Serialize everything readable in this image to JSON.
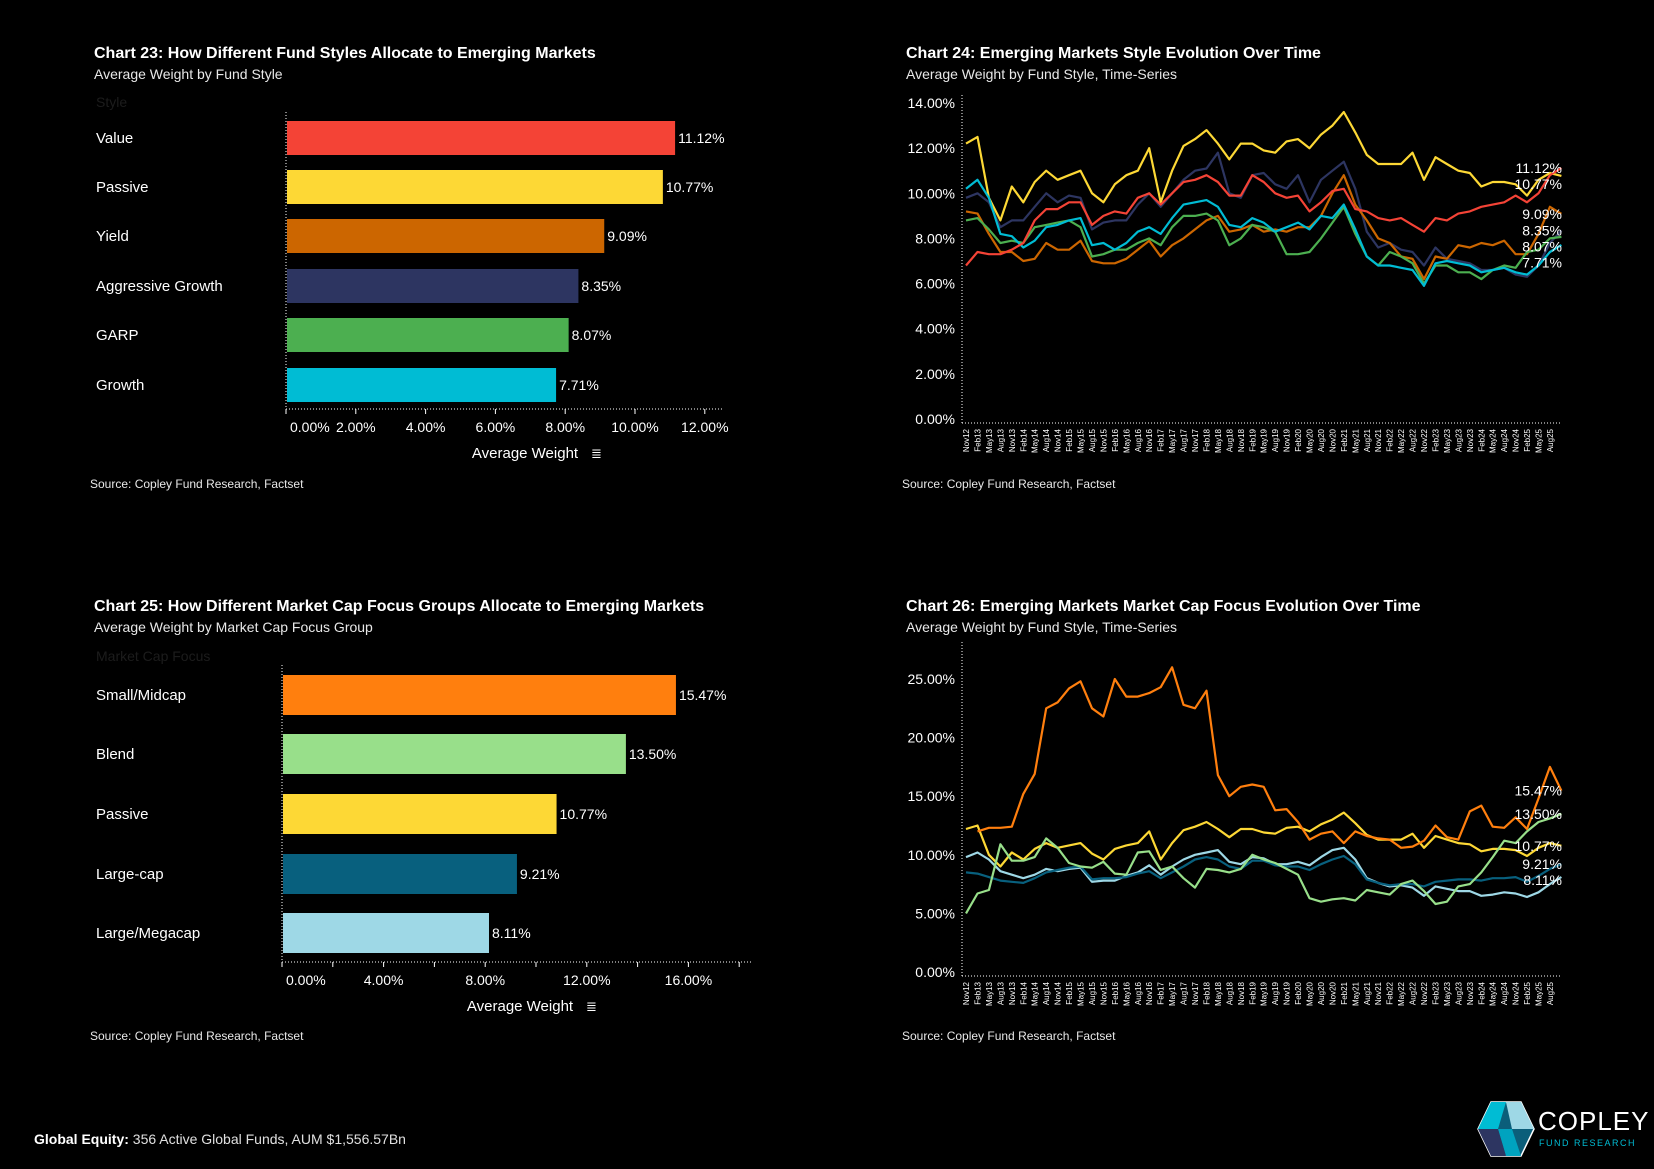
{
  "chart_data": [
    {
      "id": "chart23",
      "type": "bar",
      "orientation": "horizontal",
      "title": "Chart 23:  How Different Fund Styles Allocate to Emerging Markets",
      "subtitle": "Average Weight by Fund Style",
      "category_header": "Style",
      "categories": [
        "Value",
        "Passive",
        "Yield",
        "Aggressive Growth",
        "GARP",
        "Growth"
      ],
      "values": [
        11.12,
        10.77,
        9.09,
        8.35,
        8.07,
        7.71
      ],
      "value_labels": [
        "11.12%",
        "10.77%",
        "9.09%",
        "8.35%",
        "8.07%",
        "7.71%"
      ],
      "colors": [
        "#f44336",
        "#fdd835",
        "#cc6600",
        "#2d3561",
        "#4caf50",
        "#00bcd4"
      ],
      "xlabel": "Average Weight",
      "x_ticks": [
        "0.00%",
        "2.00%",
        "4.00%",
        "6.00%",
        "8.00%",
        "10.00%",
        "12.00%"
      ],
      "xlim": [
        0,
        12.5
      ],
      "source": "Source:  Copley Fund Research, Factset"
    },
    {
      "id": "chart24",
      "type": "line",
      "title": "Chart 24:  Emerging Markets Style Evolution Over Time",
      "subtitle": "Average Weight by Fund Style, Time-Series",
      "ylim": [
        0,
        14
      ],
      "y_ticks": [
        "0.00%",
        "2.00%",
        "4.00%",
        "6.00%",
        "8.00%",
        "10.00%",
        "12.00%",
        "14.00%"
      ],
      "x_labels": [
        "Nov12",
        "Feb13",
        "May13",
        "Aug13",
        "Nov13",
        "Feb14",
        "May14",
        "Aug14",
        "Nov14",
        "Feb15",
        "May15",
        "Aug15",
        "Nov15",
        "Feb16",
        "May16",
        "Aug16",
        "Nov16",
        "Feb17",
        "May17",
        "Aug17",
        "Nov17",
        "Feb18",
        "May18",
        "Aug18",
        "Nov18",
        "Feb19",
        "May19",
        "Aug19",
        "Nov19",
        "Feb20",
        "May20",
        "Aug20",
        "Nov20",
        "Feb21",
        "May21",
        "Aug21",
        "Nov21",
        "Feb22",
        "May22",
        "Aug22",
        "Nov22",
        "Feb23",
        "May23",
        "Aug23",
        "Nov23",
        "Feb24",
        "May24",
        "Aug24",
        "Nov24",
        "Feb25",
        "May25",
        "Aug25"
      ],
      "series": [
        {
          "color": "#fdd835",
          "end_label": "10.77%",
          "values": [
            12.2,
            12.5,
            9.8,
            8.8,
            10.3,
            9.6,
            10.5,
            11.0,
            10.6,
            10.8,
            11.0,
            10.0,
            9.6,
            10.4,
            10.8,
            11.0,
            12.0,
            9.6,
            11.0,
            12.1,
            12.4,
            12.8,
            12.2,
            11.5,
            12.2,
            12.2,
            11.9,
            11.8,
            12.3,
            12.4,
            12.0,
            12.6,
            13.0,
            13.6,
            12.7,
            11.7,
            11.3,
            11.3,
            11.3,
            11.8,
            10.6,
            11.6,
            11.3,
            11.0,
            10.9,
            10.3,
            10.5,
            10.5,
            10.4,
            9.9,
            10.6,
            10.9,
            10.77
          ]
        },
        {
          "color": "#2d3561",
          "end_label": "8.35%",
          "values": [
            9.8,
            10.0,
            9.6,
            8.5,
            8.8,
            8.8,
            9.4,
            10.0,
            9.6,
            9.9,
            9.8,
            8.4,
            8.7,
            8.8,
            8.8,
            9.5,
            10.0,
            9.4,
            10.0,
            10.6,
            11.0,
            11.1,
            11.8,
            10.0,
            9.8,
            10.8,
            10.9,
            10.4,
            10.2,
            10.8,
            9.6,
            10.6,
            11.0,
            11.4,
            10.2,
            8.3,
            7.6,
            7.8,
            7.5,
            7.4,
            6.8,
            7.6,
            7.1,
            7.0,
            6.9,
            6.6,
            6.6,
            6.7,
            6.4,
            6.3,
            6.8,
            7.8,
            8.35
          ]
        },
        {
          "color": "#cc6600",
          "end_label": "9.09%",
          "values": [
            9.2,
            9.1,
            8.2,
            7.4,
            7.4,
            7.0,
            7.1,
            7.8,
            7.5,
            7.5,
            7.9,
            7.0,
            6.9,
            6.9,
            7.1,
            7.5,
            7.9,
            7.2,
            7.7,
            8.0,
            8.4,
            8.8,
            9.0,
            8.3,
            8.4,
            8.6,
            8.3,
            8.4,
            8.3,
            8.5,
            8.5,
            9.0,
            10.0,
            10.8,
            9.5,
            8.8,
            8.0,
            7.8,
            7.2,
            7.1,
            6.2,
            7.2,
            7.1,
            7.7,
            7.6,
            7.8,
            7.7,
            7.9,
            7.3,
            7.3,
            8.2,
            9.4,
            9.09
          ]
        },
        {
          "color": "#4caf50",
          "end_label": "8.07%",
          "values": [
            8.8,
            8.9,
            8.4,
            7.8,
            7.9,
            7.8,
            8.5,
            8.6,
            8.7,
            8.8,
            8.5,
            7.2,
            7.3,
            7.5,
            7.5,
            7.8,
            8.0,
            7.7,
            8.5,
            9.0,
            9.0,
            9.1,
            8.8,
            7.7,
            8.0,
            8.6,
            8.5,
            8.3,
            7.3,
            7.3,
            7.4,
            8.0,
            8.7,
            9.4,
            8.2,
            7.2,
            6.8,
            7.4,
            7.2,
            6.9,
            6.0,
            6.8,
            6.8,
            6.5,
            6.5,
            6.2,
            6.6,
            6.8,
            6.7,
            7.4,
            7.5,
            8.0,
            8.07
          ]
        },
        {
          "color": "#00bcd4",
          "end_label": "7.71%",
          "values": [
            10.2,
            10.6,
            9.8,
            8.2,
            8.1,
            7.6,
            7.9,
            8.5,
            8.6,
            8.8,
            8.9,
            7.7,
            7.8,
            7.5,
            7.8,
            8.3,
            8.5,
            8.2,
            8.9,
            9.5,
            9.6,
            9.7,
            9.4,
            8.6,
            8.5,
            8.9,
            8.7,
            8.3,
            8.5,
            8.7,
            8.4,
            9.0,
            8.9,
            9.5,
            8.4,
            7.2,
            6.8,
            6.8,
            6.7,
            6.6,
            5.9,
            6.9,
            7.0,
            6.9,
            6.8,
            6.5,
            6.6,
            6.7,
            6.5,
            6.4,
            6.8,
            7.4,
            7.71
          ]
        },
        {
          "color": "#f44336",
          "end_label": "11.12%",
          "values": [
            6.8,
            7.4,
            7.3,
            7.3,
            7.5,
            7.8,
            8.8,
            9.3,
            9.3,
            9.6,
            9.6,
            8.6,
            9.0,
            9.2,
            9.1,
            9.8,
            10.0,
            9.5,
            10.0,
            10.5,
            10.6,
            10.8,
            10.5,
            9.9,
            9.9,
            10.8,
            10.5,
            10.0,
            9.8,
            9.9,
            9.2,
            9.6,
            10.1,
            10.2,
            9.3,
            9.2,
            8.9,
            8.8,
            8.9,
            8.6,
            8.3,
            8.9,
            8.8,
            9.1,
            9.2,
            9.4,
            9.5,
            9.6,
            9.9,
            9.6,
            10.0,
            10.8,
            11.12
          ]
        }
      ],
      "grid": false,
      "source": "Source:  Copley Fund Research, Factset"
    },
    {
      "id": "chart25",
      "type": "bar",
      "orientation": "horizontal",
      "title": "Chart 25:  How Different Market Cap Focus Groups Allocate to Emerging Markets",
      "subtitle": "Average Weight by Market Cap Focus Group",
      "category_header": "Market Cap Focus",
      "categories": [
        "Small/Midcap",
        "Blend",
        "Passive",
        "Large-cap",
        "Large/Megacap"
      ],
      "values": [
        15.47,
        13.5,
        10.77,
        9.21,
        8.11
      ],
      "value_labels": [
        "15.47%",
        "13.50%",
        "10.77%",
        "9.21%",
        "8.11%"
      ],
      "colors": [
        "#ff7f0e",
        "#98df8a",
        "#fdd835",
        "#08607e",
        "#9ed8e6"
      ],
      "xlabel": "Average Weight",
      "x_ticks": [
        "0.00%",
        "4.00%",
        "8.00%",
        "12.00%",
        "16.00%"
      ],
      "xlim": [
        0,
        18.5
      ],
      "source": "Source:  Copley Fund Research, Factset"
    },
    {
      "id": "chart26",
      "type": "line",
      "title": "Chart 26:  Emerging Markets Market Cap Focus Evolution Over Time",
      "subtitle": "Average Weight by Fund Style, Time-Series",
      "ylim": [
        0,
        27
      ],
      "y_ticks": [
        "0.00%",
        "5.00%",
        "10.00%",
        "15.00%",
        "20.00%",
        "25.00%"
      ],
      "x_labels": [
        "Nov12",
        "Feb13",
        "May13",
        "Aug13",
        "Nov13",
        "Feb14",
        "May14",
        "Aug14",
        "Nov14",
        "Feb15",
        "May15",
        "Aug15",
        "Nov15",
        "Feb16",
        "May16",
        "Aug16",
        "Nov16",
        "Feb17",
        "May17",
        "Aug17",
        "Nov17",
        "Feb18",
        "May18",
        "Aug18",
        "Nov18",
        "Feb19",
        "May19",
        "Aug19",
        "Nov19",
        "Feb20",
        "May20",
        "Aug20",
        "Nov20",
        "Feb21",
        "May21",
        "Aug21",
        "Nov21",
        "Feb22",
        "May22",
        "Aug22",
        "Nov22",
        "Feb23",
        "May23",
        "Aug23",
        "Nov23",
        "Feb24",
        "May24",
        "Aug24",
        "Nov24",
        "Feb25",
        "May25",
        "Aug25"
      ],
      "series": [
        {
          "color": "#fdd835",
          "end_label": "10.77%",
          "values": [
            12.2,
            12.5,
            10.0,
            9.0,
            10.2,
            9.6,
            10.5,
            11.0,
            10.6,
            10.8,
            11.0,
            10.1,
            9.6,
            10.5,
            10.8,
            11.0,
            12.0,
            9.6,
            11.0,
            12.1,
            12.4,
            12.8,
            12.2,
            11.5,
            12.2,
            12.2,
            11.9,
            11.8,
            12.3,
            12.4,
            12.0,
            12.6,
            13.0,
            13.6,
            12.7,
            11.7,
            11.3,
            11.3,
            11.3,
            11.8,
            10.6,
            11.6,
            11.3,
            11.0,
            10.9,
            10.3,
            10.5,
            10.5,
            10.4,
            9.9,
            10.6,
            11.0,
            10.77
          ]
        },
        {
          "color": "#9ed8e6",
          "end_label": "8.11%",
          "values": [
            9.8,
            10.2,
            9.6,
            8.6,
            8.3,
            8.0,
            8.3,
            8.8,
            8.6,
            8.8,
            8.9,
            7.7,
            7.8,
            7.8,
            8.2,
            8.5,
            9.1,
            8.3,
            9.0,
            9.6,
            10.0,
            10.2,
            10.4,
            9.4,
            9.2,
            9.8,
            9.7,
            9.2,
            9.2,
            9.4,
            9.1,
            9.8,
            10.4,
            10.6,
            9.6,
            8.0,
            7.6,
            7.3,
            7.4,
            7.2,
            6.5,
            7.3,
            7.1,
            6.9,
            6.9,
            6.5,
            6.6,
            6.8,
            6.7,
            6.4,
            6.8,
            7.5,
            8.11
          ]
        },
        {
          "color": "#08607e",
          "end_label": "9.21%",
          "values": [
            8.5,
            8.4,
            8.1,
            7.8,
            7.7,
            7.6,
            8.0,
            8.5,
            8.7,
            8.9,
            9.0,
            7.9,
            8.0,
            8.0,
            8.1,
            8.4,
            8.6,
            8.0,
            8.5,
            9.0,
            9.6,
            9.8,
            9.6,
            9.0,
            8.8,
            9.5,
            9.5,
            9.1,
            9.0,
            9.0,
            8.7,
            9.2,
            9.6,
            9.9,
            9.2,
            7.9,
            7.6,
            7.4,
            7.5,
            7.5,
            7.3,
            7.7,
            7.8,
            7.9,
            7.9,
            7.8,
            8.0,
            8.0,
            8.1,
            7.7,
            8.2,
            8.8,
            9.21
          ]
        },
        {
          "color": "#98df8a",
          "end_label": "13.50%",
          "values": [
            5.0,
            6.7,
            7.0,
            10.9,
            9.5,
            9.5,
            9.8,
            11.4,
            10.6,
            9.3,
            9.0,
            8.9,
            9.4,
            8.4,
            8.3,
            10.2,
            10.3,
            8.7,
            9.0,
            8.0,
            7.2,
            8.8,
            8.7,
            8.5,
            8.8,
            10.0,
            9.6,
            9.3,
            8.8,
            8.3,
            6.3,
            6.0,
            6.2,
            6.3,
            6.1,
            7.0,
            6.8,
            6.6,
            7.5,
            7.8,
            6.9,
            5.8,
            6.0,
            7.3,
            7.5,
            8.5,
            9.8,
            11.2,
            11.0,
            12.0,
            12.8,
            13.1,
            13.5
          ]
        },
        {
          "color": "#ff7f0e",
          "end_label": "15.47%",
          "values": [
            null,
            12.0,
            12.3,
            12.3,
            12.4,
            15.2,
            16.9,
            22.5,
            23.0,
            24.2,
            24.8,
            22.5,
            21.8,
            25.0,
            23.5,
            23.5,
            23.8,
            24.3,
            26.0,
            22.8,
            22.5,
            24.0,
            16.8,
            15.0,
            15.8,
            16.0,
            15.8,
            13.8,
            13.9,
            12.8,
            11.3,
            11.8,
            12.0,
            11.0,
            12.0,
            11.6,
            11.4,
            11.3,
            10.6,
            10.7,
            11.2,
            12.5,
            11.5,
            11.3,
            13.7,
            14.2,
            12.4,
            12.3,
            13.2,
            12.2,
            14.8,
            17.5,
            15.47
          ]
        }
      ],
      "grid": false,
      "source": "Source:  Copley Fund Research, Factset"
    }
  ],
  "footer": {
    "label": "Global Equity:",
    "text": " 356 Active Global Funds, AUM $1,556.57Bn"
  },
  "logo": {
    "name": "COPLEY",
    "tagline": "FUND RESEARCH"
  }
}
